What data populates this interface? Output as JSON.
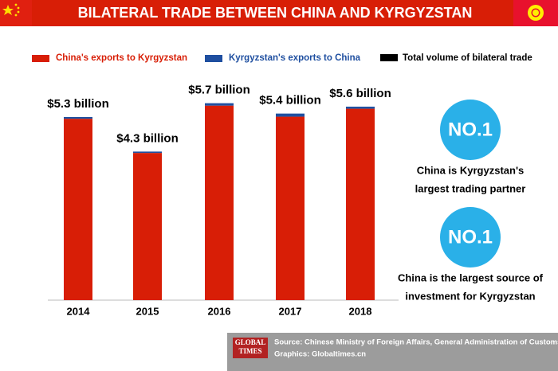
{
  "header": {
    "title": "BILATERAL TRADE BETWEEN CHINA AND KYRGYZSTAN"
  },
  "chart_data": {
    "type": "bar",
    "stacked": true,
    "categories": [
      "2014",
      "2015",
      "2016",
      "2017",
      "2018"
    ],
    "series": [
      {
        "name": "China's exports to Kyrgyzstan",
        "color": "#d81e06",
        "values": [
          5.25,
          4.26,
          5.63,
          5.31,
          5.54
        ]
      },
      {
        "name": "Kyrgyzstan's exports to China",
        "color": "#1f4fa0",
        "values": [
          0.05,
          0.04,
          0.07,
          0.09,
          0.06
        ]
      },
      {
        "name": "Total volume of bilateral trade",
        "color": "#000000",
        "values": [
          5.3,
          4.3,
          5.7,
          5.4,
          5.6
        ],
        "value_labels": [
          "$5.3 billion",
          "$4.3 billion",
          "$5.7 billion",
          "$5.4 billion",
          "$5.6 billion"
        ]
      }
    ]
  },
  "highlights": [
    {
      "badge": "NO.1",
      "lines": [
        "China is Kyrgyzstan's",
        "largest trading partner"
      ]
    },
    {
      "badge": "NO.1",
      "lines": [
        "China is the largest source of",
        "investment for Kyrgyzstan"
      ]
    }
  ],
  "footer": {
    "logo": [
      "GLOBAL",
      "TIMES"
    ],
    "source": "Source: Chinese Ministry of Foreign Affairs, General Administration of Customs",
    "graphics": "Graphics: Globaltimes.cn"
  }
}
